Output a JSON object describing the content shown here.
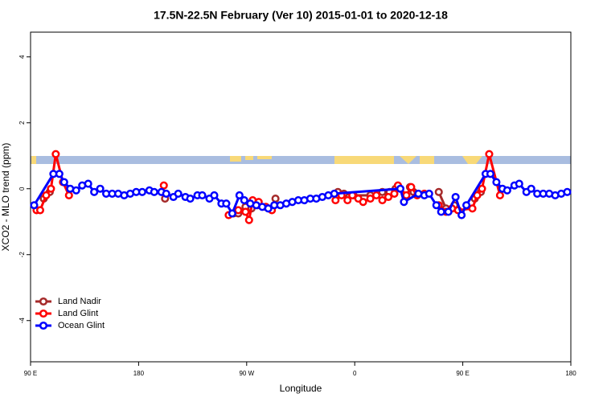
{
  "chart_data": {
    "type": "line",
    "title": "17.5N-22.5N February (Ver 10)   2015-01-01 to 2020-12-18",
    "x_label": "Longitude",
    "y_label": "XCO2 - MLO trend (ppm)",
    "xlim": [
      90,
      540
    ],
    "xticks": [
      {
        "value": 90,
        "label": "90 E"
      },
      180,
      {
        "value": 270,
        "label": "90 W"
      },
      {
        "value": 360,
        "label": "0"
      },
      {
        "value": 450,
        "label": "90 E"
      },
      {
        "value": 540,
        "label": "180"
      }
    ],
    "ylim": [
      -5.25,
      4.75
    ],
    "yticks": [
      -4,
      -2,
      0,
      2,
      4
    ],
    "legend": "bottomleft",
    "series": [
      {
        "name": "Land Nadir",
        "color": "#a52a2a",
        "x": [
          101,
          106,
          null,
          202,
          null,
          259,
          263,
          269,
          274,
          279,
          null,
          294,
          null,
          346,
          351,
          359,
          373,
          383,
          389,
          394,
          null,
          406,
          409,
          null,
          430,
          436,
          443,
          null,
          460,
          465
        ],
        "values": [
          -0.3,
          -0.1,
          null,
          -0.3,
          null,
          -0.75,
          -0.75,
          -0.55,
          -0.6,
          -0.5,
          null,
          -0.3,
          null,
          -0.1,
          -0.15,
          -0.2,
          -0.2,
          -0.1,
          -0.1,
          0,
          null,
          0.05,
          -0.1,
          null,
          -0.1,
          -0.6,
          -0.5,
          null,
          -0.3,
          -0.1
        ]
      },
      {
        "name": "Land Glint",
        "color": "#ff0000",
        "x": [
          95,
          98,
          103,
          107,
          111,
          117,
          122,
          null,
          201,
          null,
          255,
          263,
          269,
          272,
          275,
          280,
          286,
          291,
          null,
          344,
          349,
          354,
          358,
          363,
          367,
          373,
          378,
          383,
          388,
          393,
          396,
          403,
          407,
          412,
          418,
          null,
          430,
          436,
          441,
          446,
          458,
          462,
          466,
          472,
          481
        ],
        "values": [
          -0.65,
          -0.65,
          -0.2,
          0,
          1.05,
          0.2,
          -0.2,
          null,
          0.1,
          null,
          -0.8,
          -0.65,
          -0.7,
          -0.95,
          -0.35,
          -0.4,
          -0.55,
          -0.65,
          null,
          -0.35,
          -0.2,
          -0.35,
          -0.2,
          -0.3,
          -0.4,
          -0.3,
          -0.2,
          -0.35,
          -0.25,
          -0.15,
          0.1,
          -0.2,
          0.05,
          -0.2,
          -0.15,
          null,
          -0.5,
          -0.7,
          -0.6,
          -0.65,
          -0.6,
          -0.2,
          0,
          1.05,
          -0.2
        ]
      },
      {
        "name": "Ocean Glint",
        "color": "#0000ff",
        "x": [
          93,
          109,
          114,
          118,
          123,
          128,
          133,
          138,
          143,
          148,
          153,
          158,
          163,
          168,
          173,
          178,
          183,
          189,
          193,
          199,
          203,
          209,
          213,
          219,
          223,
          229,
          233,
          239,
          243,
          249,
          253,
          258,
          264,
          268,
          273,
          278,
          283,
          288,
          293,
          298,
          303,
          308,
          313,
          318,
          323,
          328,
          333,
          338,
          343,
          398,
          401,
          413,
          418,
          422,
          428,
          432,
          438,
          444,
          449,
          453,
          469,
          473,
          478,
          483,
          487,
          493,
          497,
          503,
          507,
          512,
          517,
          522,
          527,
          532,
          537
        ],
        "values": [
          -0.5,
          0.45,
          0.45,
          0.2,
          0,
          -0.05,
          0.1,
          0.15,
          -0.1,
          0,
          -0.15,
          -0.15,
          -0.15,
          -0.2,
          -0.15,
          -0.1,
          -0.1,
          -0.05,
          -0.1,
          -0.1,
          -0.15,
          -0.25,
          -0.15,
          -0.25,
          -0.3,
          -0.2,
          -0.2,
          -0.3,
          -0.2,
          -0.45,
          -0.45,
          -0.75,
          -0.2,
          -0.35,
          -0.45,
          -0.5,
          -0.55,
          -0.6,
          -0.5,
          -0.5,
          -0.45,
          -0.4,
          -0.35,
          -0.35,
          -0.3,
          -0.3,
          -0.25,
          -0.2,
          -0.15,
          0,
          -0.4,
          -0.15,
          -0.2,
          -0.15,
          -0.5,
          -0.7,
          -0.7,
          -0.25,
          -0.8,
          -0.5,
          0.45,
          0.45,
          0.2,
          0,
          -0.05,
          0.1,
          0.15,
          -0.1,
          0,
          -0.15,
          -0.15,
          -0.15,
          -0.2,
          -0.15,
          -0.1
        ]
      }
    ]
  }
}
